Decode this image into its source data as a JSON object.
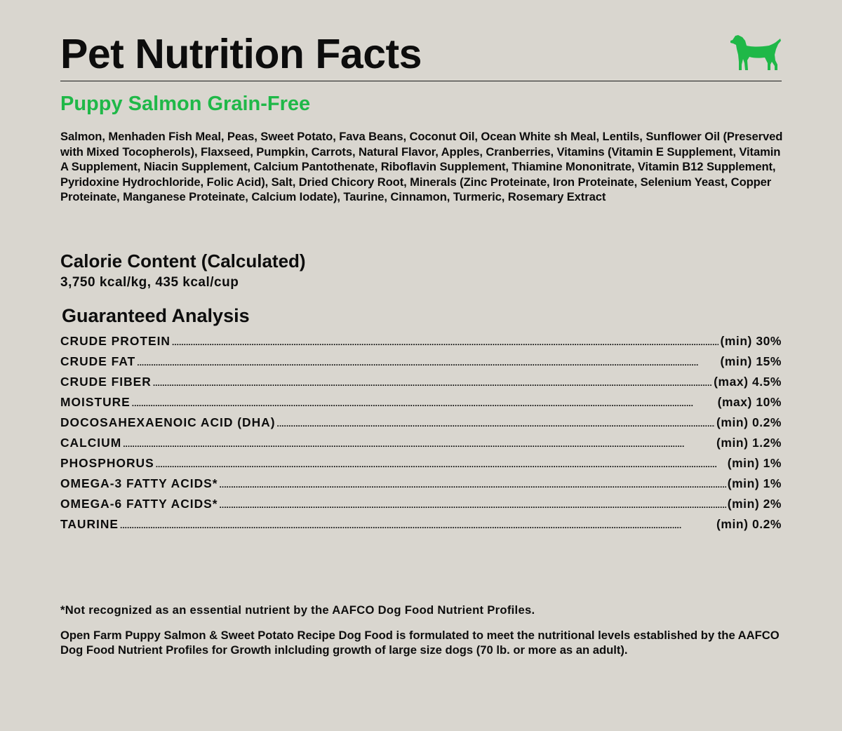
{
  "title": "Pet Nutrition Facts",
  "icons": {
    "brand": "dog-icon",
    "brand_color": "#1fb848"
  },
  "product": {
    "name": "Puppy Salmon Grain-Free"
  },
  "ingredients": "Salmon, Menhaden Fish Meal, Peas, Sweet Potato, Fava Beans, Coconut Oil, Ocean White sh Meal, Lentils, Sunflower Oil (Preserved with Mixed Tocopherols), Flaxseed, Pumpkin, Carrots, Natural Flavor, Apples, Cranberries, Vitamins (Vitamin E Supplement, Vitamin A Supplement, Niacin Supplement, Calcium Pantothenate, Riboflavin Supplement, Thiamine Mononitrate, Vitamin B12 Supplement, Pyridoxine Hydrochloride, Folic Acid), Salt, Dried Chicory Root, Minerals (Zinc Proteinate, Iron Proteinate, Selenium Yeast, Copper Proteinate, Manganese Proteinate, Calcium Iodate), Taurine, Cinnamon, Turmeric, Rosemary Extract",
  "calorie": {
    "title": "Calorie Content (Calculated)",
    "value": "3,750 kcal/kg, 435 kcal/cup"
  },
  "analysis": {
    "title": "Guaranteed Analysis",
    "rows": [
      {
        "name": "CRUDE PROTEIN",
        "value": "(min) 30%"
      },
      {
        "name": "CRUDE FAT",
        "value": "(min) 15%"
      },
      {
        "name": "CRUDE FIBER",
        "value": "(max) 4.5%"
      },
      {
        "name": "MOISTURE",
        "value": "(max) 10%"
      },
      {
        "name": "DOCOSAHEXAENOIC ACID (DHA)",
        "value": "(min) 0.2%"
      },
      {
        "name": "CALCIUM",
        "value": "(min) 1.2%"
      },
      {
        "name": "PHOSPHORUS",
        "value": "(min) 1%"
      },
      {
        "name": "OMEGA-3 FATTY ACIDS*",
        "value": "(min) 1%"
      },
      {
        "name": "OMEGA-6 FATTY ACIDS*",
        "value": "(min) 2%"
      },
      {
        "name": "TAURINE",
        "value": "(min) 0.2%"
      }
    ]
  },
  "footnote": "*Not recognized as an essential nutrient by the AAFCO Dog Food Nutrient Profiles.",
  "statement": "Open Farm Puppy Salmon & Sweet Potato Recipe Dog Food is formulated to meet the nutritional levels established by the AAFCO Dog Food Nutrient Profiles for Growth inlcluding growth of large size dogs (70 lb. or more as an adult)."
}
